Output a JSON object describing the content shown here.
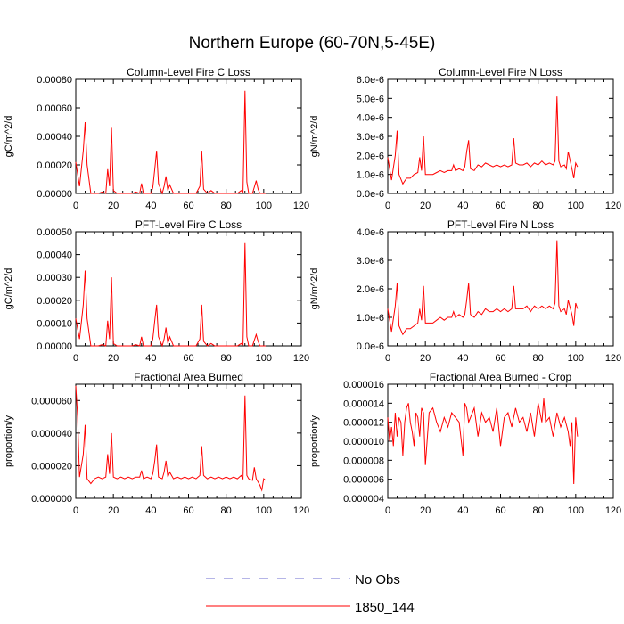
{
  "title": "Northern Europe (60-70N,5-45E)",
  "colors": {
    "series": "#ff0000",
    "obs": "#6b6bcf",
    "axis": "#000000"
  },
  "legend": [
    {
      "label": "No Obs",
      "style": "dashed",
      "color": "#6b6bcf"
    },
    {
      "label": "1850_144",
      "style": "solid",
      "color": "#ff0000"
    }
  ],
  "chart_data": [
    {
      "type": "line",
      "title": "Column-Level Fire C Loss",
      "ylabel": "gC/m^2/d",
      "xlabel": "",
      "xlim": [
        0,
        120
      ],
      "ylim": [
        0,
        0.0008
      ],
      "xticks": [
        0,
        20,
        40,
        60,
        80,
        100,
        120
      ],
      "xtick_labels": [
        "0",
        "20",
        "40",
        "60",
        "80",
        "100",
        "120"
      ],
      "yticks": [
        0,
        0.0002,
        0.0004,
        0.0006,
        0.0008
      ],
      "ytick_labels": [
        "0.00000",
        "0.00020",
        "0.00040",
        "0.00060",
        "0.00080"
      ],
      "series": [
        {
          "name": "1850_144",
          "x": [
            0,
            2,
            4,
            5,
            6,
            8,
            10,
            12,
            14,
            16,
            17,
            18,
            19,
            20,
            22,
            24,
            26,
            28,
            30,
            32,
            34,
            35,
            36,
            38,
            40,
            41,
            42,
            43,
            44,
            46,
            47,
            48,
            49,
            50,
            52,
            54,
            56,
            58,
            60,
            62,
            64,
            66,
            67,
            68,
            70,
            72,
            74,
            76,
            78,
            80,
            82,
            84,
            86,
            88,
            89,
            90,
            91,
            92,
            94,
            96,
            97,
            98,
            100,
            101
          ],
          "y": [
            0.00022,
            5e-05,
            0.0003,
            0.0005,
            0.0002,
            0,
            0,
            0,
            1e-05,
            0,
            0.00017,
            5e-05,
            0.00046,
            2e-05,
            0,
            0,
            0,
            0,
            0,
            1e-05,
            0,
            7e-05,
            0,
            0,
            0,
            4e-05,
            0.00017,
            0.0003,
            7e-05,
            0,
            5e-05,
            0.00012,
            2e-05,
            6e-05,
            0,
            0,
            0,
            0,
            0,
            0,
            0,
            5e-05,
            0.0003,
            3e-05,
            0,
            2e-05,
            0,
            0,
            0,
            0,
            0,
            0,
            0,
            2e-05,
            1e-05,
            0.00072,
            8e-05,
            0,
            0,
            9e-05,
            3e-05,
            0,
            0,
            0
          ]
        }
      ]
    },
    {
      "type": "line",
      "title": "Column-Level Fire N Loss",
      "ylabel": "gN/m^2/d",
      "xlabel": "",
      "xlim": [
        0,
        120
      ],
      "ylim": [
        0,
        6e-06
      ],
      "xticks": [
        0,
        20,
        40,
        60,
        80,
        100,
        120
      ],
      "xtick_labels": [
        "0",
        "20",
        "40",
        "60",
        "80",
        "100",
        "120"
      ],
      "yticks": [
        0,
        1e-06,
        2e-06,
        3e-06,
        4e-06,
        5e-06,
        6e-06
      ],
      "ytick_labels": [
        "0.0e-6",
        "1.0e-6",
        "2.0e-6",
        "3.0e-6",
        "4.0e-6",
        "5.0e-6",
        "6.0e-6"
      ],
      "series": [
        {
          "name": "1850_144",
          "x": [
            0,
            2,
            4,
            5,
            6,
            8,
            10,
            12,
            14,
            16,
            17,
            18,
            19,
            20,
            22,
            24,
            26,
            28,
            30,
            32,
            34,
            35,
            36,
            38,
            40,
            41,
            42,
            43,
            44,
            46,
            48,
            50,
            52,
            54,
            56,
            58,
            60,
            62,
            64,
            66,
            67,
            68,
            70,
            72,
            74,
            76,
            78,
            80,
            82,
            84,
            86,
            88,
            89,
            90,
            91,
            92,
            94,
            95,
            96,
            98,
            99,
            100,
            101
          ],
          "y": [
            1.9e-06,
            7e-07,
            2e-06,
            3.3e-06,
            1e-06,
            5e-07,
            8e-07,
            8e-07,
            1e-06,
            1.1e-06,
            1.9e-06,
            1.2e-06,
            3e-06,
            1e-06,
            1e-06,
            1e-06,
            1.1e-06,
            1.2e-06,
            1.1e-06,
            1.2e-06,
            1.2e-06,
            1.5e-06,
            1.2e-06,
            1.3e-06,
            1.2e-06,
            1.4e-06,
            2.2e-06,
            2.8e-06,
            1.3e-06,
            1.2e-06,
            1.5e-06,
            1.4e-06,
            1.6e-06,
            1.5e-06,
            1.4e-06,
            1.5e-06,
            1.4e-06,
            1.5e-06,
            1.4e-06,
            1.5e-06,
            2.9e-06,
            1.6e-06,
            1.5e-06,
            1.5e-06,
            1.6e-06,
            1.4e-06,
            1.6e-06,
            1.5e-06,
            1.7e-06,
            1.5e-06,
            1.6e-06,
            1.5e-06,
            1.7e-06,
            5.1e-06,
            1.7e-06,
            1.4e-06,
            1.5e-06,
            1.3e-06,
            2.2e-06,
            1.3e-06,
            8e-07,
            1.6e-06,
            1.4e-06
          ]
        }
      ]
    },
    {
      "type": "line",
      "title": "PFT-Level Fire C Loss",
      "ylabel": "gC/m^2/d",
      "xlabel": "",
      "xlim": [
        0,
        120
      ],
      "ylim": [
        0,
        0.0005
      ],
      "xticks": [
        0,
        20,
        40,
        60,
        80,
        100,
        120
      ],
      "xtick_labels": [
        "0",
        "20",
        "40",
        "60",
        "80",
        "100",
        "120"
      ],
      "yticks": [
        0,
        0.0001,
        0.0002,
        0.0003,
        0.0004,
        0.0005
      ],
      "ytick_labels": [
        "0.00000",
        "0.00010",
        "0.00020",
        "0.00030",
        "0.00040",
        "0.00050"
      ],
      "series": [
        {
          "name": "1850_144",
          "x": [
            0,
            2,
            4,
            5,
            6,
            8,
            10,
            12,
            14,
            16,
            17,
            18,
            19,
            20,
            22,
            24,
            26,
            28,
            30,
            32,
            34,
            35,
            36,
            38,
            40,
            41,
            42,
            43,
            44,
            46,
            47,
            48,
            49,
            50,
            52,
            54,
            56,
            58,
            60,
            62,
            64,
            66,
            67,
            68,
            70,
            72,
            74,
            76,
            78,
            80,
            82,
            84,
            86,
            88,
            89,
            90,
            91,
            92,
            94,
            96,
            97,
            98,
            100,
            101
          ],
          "y": [
            0.00012,
            3e-05,
            0.00018,
            0.00033,
            0.00012,
            0,
            0,
            0,
            5e-06,
            0,
            0.00011,
            3e-05,
            0.0003,
            1e-05,
            0,
            0,
            0,
            0,
            0,
            5e-06,
            0,
            4e-05,
            0,
            0,
            0,
            3e-05,
            0.00011,
            0.00018,
            4e-05,
            0,
            3e-05,
            8e-05,
            1e-05,
            4e-05,
            0,
            0,
            0,
            0,
            0,
            0,
            0,
            3e-05,
            0.00018,
            2e-05,
            0,
            1e-05,
            0,
            0,
            0,
            0,
            0,
            0,
            0,
            1e-05,
            5e-06,
            0.00045,
            4e-05,
            0,
            0,
            5e-05,
            2e-05,
            0,
            0,
            0
          ]
        }
      ]
    },
    {
      "type": "line",
      "title": "PFT-Level Fire N Loss",
      "ylabel": "gN/m^2/d",
      "xlabel": "",
      "xlim": [
        0,
        120
      ],
      "ylim": [
        0,
        4e-06
      ],
      "xticks": [
        0,
        20,
        40,
        60,
        80,
        100,
        120
      ],
      "xtick_labels": [
        "0",
        "20",
        "40",
        "60",
        "80",
        "100",
        "120"
      ],
      "yticks": [
        0,
        1e-06,
        2e-06,
        3e-06,
        4e-06
      ],
      "ytick_labels": [
        "0.0e-6",
        "1.0e-6",
        "2.0e-6",
        "3.0e-6",
        "4.0e-6"
      ],
      "series": [
        {
          "name": "1850_144",
          "x": [
            0,
            2,
            4,
            5,
            6,
            8,
            10,
            12,
            14,
            16,
            17,
            18,
            19,
            20,
            22,
            24,
            26,
            28,
            30,
            32,
            34,
            35,
            36,
            38,
            40,
            41,
            42,
            43,
            44,
            46,
            48,
            50,
            52,
            54,
            56,
            58,
            60,
            62,
            64,
            66,
            67,
            68,
            70,
            72,
            74,
            76,
            78,
            80,
            82,
            84,
            86,
            88,
            89,
            90,
            91,
            92,
            94,
            95,
            96,
            98,
            99,
            100,
            101
          ],
          "y": [
            1.3e-06,
            5e-07,
            1.4e-06,
            2.2e-06,
            7e-07,
            4e-07,
            6e-07,
            6e-07,
            7e-07,
            8e-07,
            1.3e-06,
            9e-07,
            2.1e-06,
            8e-07,
            8e-07,
            8e-07,
            9e-07,
            1e-06,
            9e-07,
            1e-06,
            1e-06,
            1.2e-06,
            1e-06,
            1.1e-06,
            1e-06,
            1.1e-06,
            1.6e-06,
            2.2e-06,
            1.1e-06,
            1e-06,
            1.2e-06,
            1.1e-06,
            1.3e-06,
            1.2e-06,
            1.2e-06,
            1.3e-06,
            1.2e-06,
            1.3e-06,
            1.2e-06,
            1.3e-06,
            2.1e-06,
            1.3e-06,
            1.3e-06,
            1.3e-06,
            1.4e-06,
            1.2e-06,
            1.4e-06,
            1.3e-06,
            1.4e-06,
            1.3e-06,
            1.4e-06,
            1.3e-06,
            1.5e-06,
            3.7e-06,
            1.4e-06,
            1.2e-06,
            1.3e-06,
            1.1e-06,
            1.6e-06,
            1.1e-06,
            7e-07,
            1.5e-06,
            1.3e-06
          ]
        }
      ]
    },
    {
      "type": "line",
      "title": "Fractional Area Burned",
      "ylabel": "proportion/y",
      "xlabel": "",
      "xlim": [
        0,
        120
      ],
      "ylim": [
        0,
        7e-05
      ],
      "xticks": [
        0,
        20,
        40,
        60,
        80,
        100,
        120
      ],
      "xtick_labels": [
        "0",
        "20",
        "40",
        "60",
        "80",
        "100",
        "120"
      ],
      "yticks": [
        0,
        2e-05,
        4e-05,
        6e-05
      ],
      "ytick_labels": [
        "0.000000",
        "0.000020",
        "0.000040",
        "0.000060"
      ],
      "series": [
        {
          "name": "1850_144",
          "x": [
            0,
            1,
            2,
            4,
            5,
            6,
            8,
            10,
            12,
            14,
            16,
            17,
            18,
            19,
            20,
            22,
            24,
            26,
            28,
            30,
            32,
            34,
            35,
            36,
            38,
            40,
            41,
            42,
            43,
            44,
            46,
            47,
            48,
            49,
            50,
            52,
            54,
            56,
            58,
            60,
            62,
            64,
            66,
            67,
            68,
            70,
            72,
            74,
            76,
            78,
            80,
            82,
            84,
            86,
            88,
            89,
            90,
            91,
            92,
            94,
            95,
            96,
            98,
            99,
            100,
            101
          ],
          "y": [
            6.9e-05,
            5e-05,
            1.3e-05,
            2.7e-05,
            4.5e-05,
            1.2e-05,
            9e-06,
            1.2e-05,
            1.3e-05,
            1.2e-05,
            1.3e-05,
            2.7e-05,
            1.5e-05,
            4e-05,
            1.3e-05,
            1.2e-05,
            1.3e-05,
            1.2e-05,
            1.3e-05,
            1.2e-05,
            1.3e-05,
            1.3e-05,
            1.7e-05,
            1.2e-05,
            1.3e-05,
            1.2e-05,
            1.5e-05,
            2.3e-05,
            3.3e-05,
            1.3e-05,
            1.2e-05,
            1.6e-05,
            2.3e-05,
            1.3e-05,
            1.6e-05,
            1.2e-05,
            1.3e-05,
            1.2e-05,
            1.3e-05,
            1.2e-05,
            1.3e-05,
            1.2e-05,
            1.4e-05,
            3.2e-05,
            1.4e-05,
            1.2e-05,
            1.3e-05,
            1.2e-05,
            1.3e-05,
            1.2e-05,
            1.3e-05,
            1.2e-05,
            1.3e-05,
            1.2e-05,
            1.4e-05,
            1.2e-05,
            6.3e-05,
            1.4e-05,
            1.2e-05,
            1.1e-05,
            1.9e-05,
            1.2e-05,
            8e-06,
            5e-06,
            1.2e-05,
            1.1e-05
          ]
        }
      ]
    },
    {
      "type": "line",
      "title": "Fractional Area Burned - Crop",
      "ylabel": "proportion/y",
      "xlabel": "",
      "xlim": [
        0,
        120
      ],
      "ylim": [
        4e-06,
        1.6e-05
      ],
      "xticks": [
        0,
        20,
        40,
        60,
        80,
        100,
        120
      ],
      "xtick_labels": [
        "0",
        "20",
        "40",
        "60",
        "80",
        "100",
        "120"
      ],
      "yticks": [
        4e-06,
        6e-06,
        8e-06,
        1e-05,
        1.2e-05,
        1.4e-05,
        1.6e-05
      ],
      "ytick_labels": [
        "0.000004",
        "0.000006",
        "0.000008",
        "0.000010",
        "0.000012",
        "0.000014",
        "0.000016"
      ],
      "series": [
        {
          "name": "1850_144",
          "x": [
            0,
            1,
            2,
            3,
            4,
            5,
            6,
            7,
            8,
            9,
            10,
            11,
            12,
            13,
            14,
            15,
            16,
            17,
            18,
            19,
            20,
            22,
            24,
            26,
            28,
            30,
            32,
            34,
            36,
            38,
            40,
            41,
            42,
            43,
            44,
            46,
            48,
            50,
            52,
            54,
            56,
            58,
            60,
            62,
            64,
            66,
            68,
            70,
            72,
            74,
            76,
            78,
            80,
            82,
            83,
            84,
            86,
            88,
            90,
            92,
            94,
            96,
            97,
            98,
            99,
            100,
            101
          ],
          "y": [
            1.25e-05,
            1e-05,
            1.15e-05,
            9.5e-06,
            1.3e-05,
            1.05e-05,
            1.25e-05,
            1.2e-05,
            8.5e-06,
            1.2e-05,
            1.35e-05,
            1.4e-05,
            1.2e-05,
            1.1e-05,
            9.5e-06,
            1.3e-05,
            1.25e-05,
            1.05e-05,
            1.35e-05,
            1.3e-05,
            7.5e-06,
            1.3e-05,
            1.35e-05,
            1.2e-05,
            1.1e-05,
            1.25e-05,
            1.15e-05,
            1.3e-05,
            1.25e-05,
            1.2e-05,
            8.5e-06,
            1.4e-05,
            1.35e-05,
            1.2e-05,
            1.25e-05,
            1.35e-05,
            1.05e-05,
            1.3e-05,
            1.2e-05,
            1.25e-05,
            1.1e-05,
            1.35e-05,
            9.5e-06,
            1.25e-05,
            1.3e-05,
            1.15e-05,
            1.35e-05,
            1.2e-05,
            1.25e-05,
            1.1e-05,
            1.3e-05,
            1.05e-05,
            1.4e-05,
            1.2e-05,
            1.45e-05,
            1.2e-05,
            1.25e-05,
            1.05e-05,
            1.3e-05,
            1.15e-05,
            1.25e-05,
            1.1e-05,
            9.5e-06,
            1.2e-05,
            5.5e-06,
            1.25e-05,
            1.05e-05
          ]
        }
      ]
    }
  ]
}
